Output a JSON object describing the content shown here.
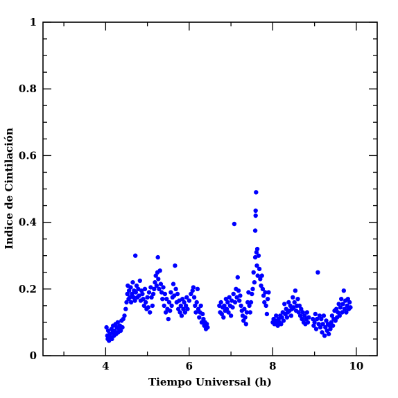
{
  "chart_data": {
    "type": "scatter",
    "title": "",
    "xlabel": "Tiempo Universal (h)",
    "ylabel": "Indice de Cintilación",
    "xlim": [
      2.5,
      10.5
    ],
    "ylim": [
      0,
      1
    ],
    "xticks": [
      4,
      6,
      8,
      10
    ],
    "yticks": [
      0,
      0.2,
      0.4,
      0.6,
      0.8,
      1
    ],
    "ytick_labels": [
      "0",
      "0.2",
      "0.4",
      "0.6",
      "0.8",
      "1"
    ],
    "grid": false,
    "color": "#0000ff",
    "series": [
      {
        "points": [
          [
            4.02,
            0.085
          ],
          [
            4.04,
            0.06
          ],
          [
            4.05,
            0.05
          ],
          [
            4.06,
            0.075
          ],
          [
            4.08,
            0.045
          ],
          [
            4.1,
            0.065
          ],
          [
            4.12,
            0.055
          ],
          [
            4.14,
            0.08
          ],
          [
            4.15,
            0.05
          ],
          [
            4.17,
            0.07
          ],
          [
            4.18,
            0.09
          ],
          [
            4.2,
            0.06
          ],
          [
            4.22,
            0.075
          ],
          [
            4.24,
            0.095
          ],
          [
            4.25,
            0.065
          ],
          [
            4.27,
            0.085
          ],
          [
            4.29,
            0.1
          ],
          [
            4.3,
            0.07
          ],
          [
            4.32,
            0.08
          ],
          [
            4.34,
            0.09
          ],
          [
            4.36,
            0.075
          ],
          [
            4.38,
            0.105
          ],
          [
            4.4,
            0.085
          ],
          [
            4.42,
            0.11
          ],
          [
            4.45,
            0.12
          ],
          [
            4.48,
            0.14
          ],
          [
            4.5,
            0.16
          ],
          [
            4.52,
            0.185
          ],
          [
            4.53,
            0.21
          ],
          [
            4.55,
            0.17
          ],
          [
            4.56,
            0.195
          ],
          [
            4.58,
            0.175
          ],
          [
            4.6,
            0.205
          ],
          [
            4.61,
            0.16
          ],
          [
            4.63,
            0.185
          ],
          [
            4.65,
            0.22
          ],
          [
            4.67,
            0.175
          ],
          [
            4.68,
            0.195
          ],
          [
            4.7,
            0.165
          ],
          [
            4.71,
            0.3
          ],
          [
            4.72,
            0.19
          ],
          [
            4.74,
            0.21
          ],
          [
            4.76,
            0.175
          ],
          [
            4.78,
            0.2
          ],
          [
            4.8,
            0.18
          ],
          [
            4.82,
            0.225
          ],
          [
            4.84,
            0.165
          ],
          [
            4.86,
            0.195
          ],
          [
            4.88,
            0.185
          ],
          [
            4.9,
            0.17
          ],
          [
            4.92,
            0.15
          ],
          [
            4.94,
            0.2
          ],
          [
            4.96,
            0.16
          ],
          [
            4.98,
            0.14
          ],
          [
            5.0,
            0.175
          ],
          [
            5.02,
            0.145
          ],
          [
            5.04,
            0.19
          ],
          [
            5.06,
            0.13
          ],
          [
            5.08,
            0.205
          ],
          [
            5.1,
            0.175
          ],
          [
            5.12,
            0.15
          ],
          [
            5.14,
            0.185
          ],
          [
            5.16,
            0.2
          ],
          [
            5.18,
            0.22
          ],
          [
            5.2,
            0.24
          ],
          [
            5.22,
            0.21
          ],
          [
            5.24,
            0.25
          ],
          [
            5.25,
            0.295
          ],
          [
            5.26,
            0.23
          ],
          [
            5.28,
            0.2
          ],
          [
            5.3,
            0.255
          ],
          [
            5.32,
            0.215
          ],
          [
            5.34,
            0.19
          ],
          [
            5.36,
            0.17
          ],
          [
            5.38,
            0.205
          ],
          [
            5.4,
            0.15
          ],
          [
            5.42,
            0.185
          ],
          [
            5.44,
            0.13
          ],
          [
            5.46,
            0.17
          ],
          [
            5.48,
            0.14
          ],
          [
            5.5,
            0.11
          ],
          [
            5.52,
            0.16
          ],
          [
            5.54,
            0.135
          ],
          [
            5.56,
            0.19
          ],
          [
            5.58,
            0.15
          ],
          [
            5.6,
            0.175
          ],
          [
            5.62,
            0.215
          ],
          [
            5.64,
            0.18
          ],
          [
            5.66,
            0.27
          ],
          [
            5.68,
            0.2
          ],
          [
            5.7,
            0.16
          ],
          [
            5.72,
            0.185
          ],
          [
            5.74,
            0.14
          ],
          [
            5.76,
            0.165
          ],
          [
            5.78,
            0.13
          ],
          [
            5.8,
            0.15
          ],
          [
            5.82,
            0.12
          ],
          [
            5.84,
            0.17
          ],
          [
            5.86,
            0.14
          ],
          [
            5.88,
            0.16
          ],
          [
            5.9,
            0.13
          ],
          [
            5.92,
            0.15
          ],
          [
            5.94,
            0.175
          ],
          [
            5.96,
            0.14
          ],
          [
            6.0,
            0.165
          ],
          [
            6.04,
            0.185
          ],
          [
            6.08,
            0.195
          ],
          [
            6.1,
            0.205
          ],
          [
            6.12,
            0.175
          ],
          [
            6.14,
            0.15
          ],
          [
            6.16,
            0.13
          ],
          [
            6.18,
            0.16
          ],
          [
            6.2,
            0.2
          ],
          [
            6.22,
            0.14
          ],
          [
            6.24,
            0.115
          ],
          [
            6.26,
            0.13
          ],
          [
            6.28,
            0.15
          ],
          [
            6.3,
            0.1
          ],
          [
            6.32,
            0.125
          ],
          [
            6.34,
            0.11
          ],
          [
            6.36,
            0.09
          ],
          [
            6.38,
            0.1
          ],
          [
            6.4,
            0.08
          ],
          [
            6.42,
            0.095
          ],
          [
            6.44,
            0.085
          ],
          [
            6.72,
            0.15
          ],
          [
            6.74,
            0.13
          ],
          [
            6.76,
            0.16
          ],
          [
            6.78,
            0.125
          ],
          [
            6.8,
            0.145
          ],
          [
            6.82,
            0.115
          ],
          [
            6.84,
            0.15
          ],
          [
            6.86,
            0.135
          ],
          [
            6.88,
            0.17
          ],
          [
            6.9,
            0.14
          ],
          [
            6.92,
            0.16
          ],
          [
            6.94,
            0.13
          ],
          [
            6.96,
            0.175
          ],
          [
            6.98,
            0.15
          ],
          [
            7.0,
            0.12
          ],
          [
            7.02,
            0.165
          ],
          [
            7.04,
            0.145
          ],
          [
            7.06,
            0.185
          ],
          [
            7.08,
            0.395
          ],
          [
            7.1,
            0.16
          ],
          [
            7.12,
            0.2
          ],
          [
            7.14,
            0.175
          ],
          [
            7.16,
            0.235
          ],
          [
            7.18,
            0.195
          ],
          [
            7.2,
            0.165
          ],
          [
            7.22,
            0.18
          ],
          [
            7.24,
            0.15
          ],
          [
            7.26,
            0.135
          ],
          [
            7.28,
            0.12
          ],
          [
            7.3,
            0.105
          ],
          [
            7.32,
            0.14
          ],
          [
            7.34,
            0.115
          ],
          [
            7.36,
            0.095
          ],
          [
            7.38,
            0.13
          ],
          [
            7.4,
            0.16
          ],
          [
            7.42,
            0.19
          ],
          [
            7.44,
            0.15
          ],
          [
            7.46,
            0.13
          ],
          [
            7.48,
            0.16
          ],
          [
            7.5,
            0.185
          ],
          [
            7.52,
            0.2
          ],
          [
            7.54,
            0.25
          ],
          [
            7.56,
            0.22
          ],
          [
            7.58,
            0.295
          ],
          [
            7.58,
            0.375
          ],
          [
            7.59,
            0.42
          ],
          [
            7.59,
            0.435
          ],
          [
            7.6,
            0.49
          ],
          [
            7.61,
            0.31
          ],
          [
            7.62,
            0.27
          ],
          [
            7.63,
            0.32
          ],
          [
            7.64,
            0.24
          ],
          [
            7.66,
            0.3
          ],
          [
            7.68,
            0.26
          ],
          [
            7.7,
            0.23
          ],
          [
            7.72,
            0.21
          ],
          [
            7.74,
            0.24
          ],
          [
            7.76,
            0.2
          ],
          [
            7.78,
            0.18
          ],
          [
            7.8,
            0.16
          ],
          [
            7.82,
            0.19
          ],
          [
            7.84,
            0.15
          ],
          [
            7.86,
            0.125
          ],
          [
            7.88,
            0.17
          ],
          [
            7.9,
            0.19
          ],
          [
            8.0,
            0.1
          ],
          [
            8.02,
            0.11
          ],
          [
            8.04,
            0.095
          ],
          [
            8.06,
            0.105
          ],
          [
            8.08,
            0.12
          ],
          [
            8.1,
            0.1
          ],
          [
            8.12,
            0.09
          ],
          [
            8.14,
            0.11
          ],
          [
            8.16,
            0.1
          ],
          [
            8.18,
            0.12
          ],
          [
            8.2,
            0.095
          ],
          [
            8.22,
            0.115
          ],
          [
            8.24,
            0.13
          ],
          [
            8.26,
            0.105
          ],
          [
            8.28,
            0.155
          ],
          [
            8.3,
            0.125
          ],
          [
            8.32,
            0.14
          ],
          [
            8.34,
            0.115
          ],
          [
            8.36,
            0.13
          ],
          [
            8.38,
            0.16
          ],
          [
            8.4,
            0.135
          ],
          [
            8.42,
            0.15
          ],
          [
            8.44,
            0.12
          ],
          [
            8.46,
            0.14
          ],
          [
            8.48,
            0.175
          ],
          [
            8.5,
            0.145
          ],
          [
            8.52,
            0.16
          ],
          [
            8.54,
            0.195
          ],
          [
            8.56,
            0.135
          ],
          [
            8.58,
            0.15
          ],
          [
            8.6,
            0.17
          ],
          [
            8.62,
            0.13
          ],
          [
            8.64,
            0.15
          ],
          [
            8.66,
            0.12
          ],
          [
            8.68,
            0.14
          ],
          [
            8.7,
            0.11
          ],
          [
            8.72,
            0.13
          ],
          [
            8.74,
            0.1
          ],
          [
            8.76,
            0.12
          ],
          [
            8.78,
            0.095
          ],
          [
            8.8,
            0.11
          ],
          [
            8.82,
            0.13
          ],
          [
            8.84,
            0.1
          ],
          [
            8.86,
            0.115
          ],
          [
            8.96,
            0.11
          ],
          [
            8.98,
            0.09
          ],
          [
            9.0,
            0.1
          ],
          [
            9.02,
            0.125
          ],
          [
            9.04,
            0.08
          ],
          [
            9.06,
            0.11
          ],
          [
            9.08,
            0.25
          ],
          [
            9.1,
            0.095
          ],
          [
            9.12,
            0.12
          ],
          [
            9.14,
            0.085
          ],
          [
            9.16,
            0.11
          ],
          [
            9.18,
            0.07
          ],
          [
            9.2,
            0.095
          ],
          [
            9.22,
            0.12
          ],
          [
            9.24,
            0.06
          ],
          [
            9.26,
            0.085
          ],
          [
            9.28,
            0.105
          ],
          [
            9.3,
            0.075
          ],
          [
            9.32,
            0.095
          ],
          [
            9.34,
            0.065
          ],
          [
            9.36,
            0.09
          ],
          [
            9.38,
            0.08
          ],
          [
            9.4,
            0.1
          ],
          [
            9.42,
            0.12
          ],
          [
            9.44,
            0.09
          ],
          [
            9.46,
            0.11
          ],
          [
            9.48,
            0.135
          ],
          [
            9.5,
            0.105
          ],
          [
            9.52,
            0.14
          ],
          [
            9.54,
            0.115
          ],
          [
            9.56,
            0.13
          ],
          [
            9.58,
            0.155
          ],
          [
            9.6,
            0.12
          ],
          [
            9.62,
            0.145
          ],
          [
            9.64,
            0.17
          ],
          [
            9.66,
            0.13
          ],
          [
            9.68,
            0.155
          ],
          [
            9.7,
            0.195
          ],
          [
            9.72,
            0.14
          ],
          [
            9.74,
            0.165
          ],
          [
            9.76,
            0.13
          ],
          [
            9.78,
            0.15
          ],
          [
            9.8,
            0.17
          ],
          [
            9.82,
            0.14
          ],
          [
            9.84,
            0.16
          ],
          [
            9.86,
            0.145
          ]
        ]
      }
    ]
  }
}
